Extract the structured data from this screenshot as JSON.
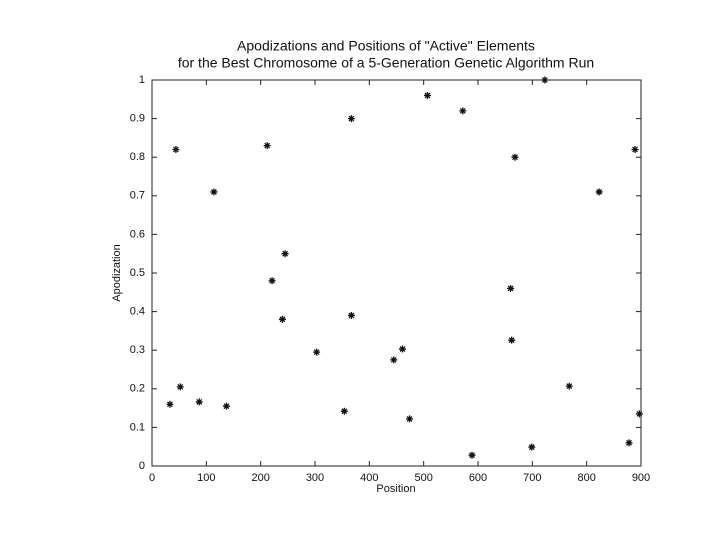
{
  "chart_data": {
    "type": "scatter",
    "title": [
      "Apodizations and Positions of \"Active\" Elements",
      "for the Best Chromosome of a 5-Generation Genetic Algorithm Run"
    ],
    "x_label": "Position",
    "y_label": "Apodization",
    "x": [
      33,
      44,
      52,
      87,
      114,
      137,
      212,
      221,
      240,
      245,
      303,
      354,
      367,
      367,
      445,
      461,
      474,
      507,
      572,
      589,
      660,
      662,
      668,
      699,
      723,
      768,
      823,
      878,
      889,
      897
    ],
    "series": [
      {
        "color": "#111111",
        "values": [
          0.16,
          0.82,
          0.205,
          0.166,
          0.71,
          0.155,
          0.83,
          0.48,
          0.38,
          0.55,
          0.295,
          0.142,
          0.9,
          0.39,
          0.275,
          0.303,
          0.122,
          0.96,
          0.92,
          0.028,
          0.46,
          0.326,
          0.8,
          0.049,
          1.0,
          0.207,
          0.71,
          0.06,
          0.82,
          0.135
        ]
      }
    ],
    "xlim": [
      0,
      900
    ],
    "ylim": [
      0,
      1
    ],
    "xticks": [
      0,
      100,
      200,
      300,
      400,
      500,
      600,
      700,
      800,
      900
    ],
    "yticks": [
      0,
      0.1,
      0.2,
      0.3,
      0.4,
      0.5,
      0.6,
      0.7,
      0.8,
      0.9,
      1
    ],
    "grid": false
  }
}
